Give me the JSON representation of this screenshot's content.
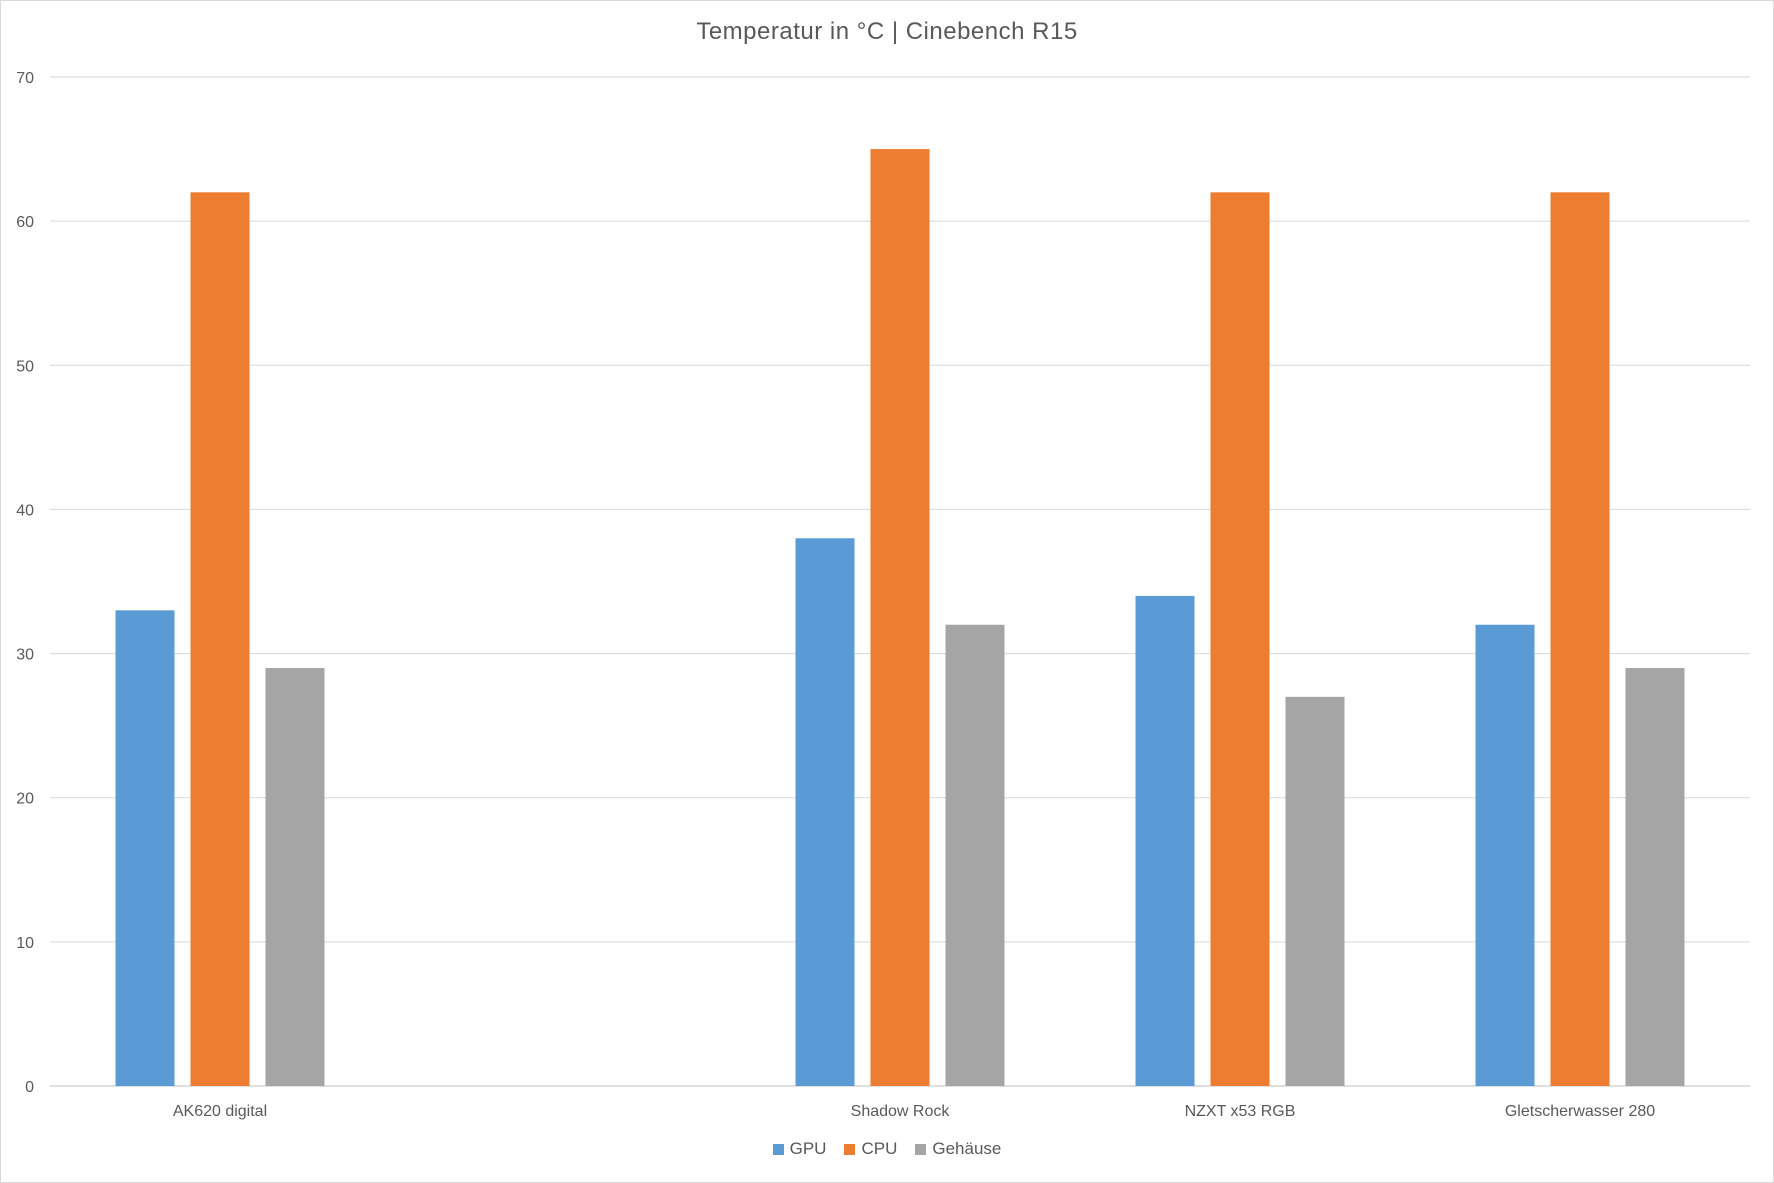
{
  "chart_data": {
    "type": "bar",
    "title": "Temperatur in °C | Cinebench R15",
    "categories": [
      "AK620 digital",
      "",
      "Shadow Rock",
      "NZXT x53 RGB",
      "Gletscherwasser 280"
    ],
    "series": [
      {
        "name": "GPU",
        "color": "#5b9bd5",
        "values": [
          33,
          null,
          38,
          34,
          32
        ]
      },
      {
        "name": "CPU",
        "color": "#ed7d31",
        "values": [
          62,
          null,
          65,
          62,
          62
        ]
      },
      {
        "name": "Gehäuse",
        "color": "#a5a5a5",
        "values": [
          29,
          null,
          32,
          27,
          29
        ]
      }
    ],
    "ylim": [
      0,
      70
    ],
    "yticks": [
      0,
      10,
      20,
      30,
      40,
      50,
      60,
      70
    ],
    "grid": true,
    "legend": "bottom"
  }
}
